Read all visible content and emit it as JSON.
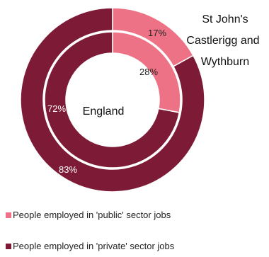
{
  "chart_data": {
    "type": "pie",
    "variant": "double-donut",
    "rings": [
      {
        "name": "St John's Castlerigg and Wythburn",
        "values": [
          17,
          83
        ],
        "ring": "outer"
      },
      {
        "name": "England",
        "values": [
          28,
          72
        ],
        "ring": "inner"
      }
    ],
    "categories": [
      "People employed in 'public' sector jobs",
      "People employed in 'private' sector jobs"
    ],
    "colors": [
      "#ee7285",
      "#7d1b37"
    ],
    "data_labels": {
      "outer": [
        "17%",
        "83%"
      ],
      "inner": [
        "28%",
        "72%"
      ]
    },
    "legend_position": "bottom"
  }
}
